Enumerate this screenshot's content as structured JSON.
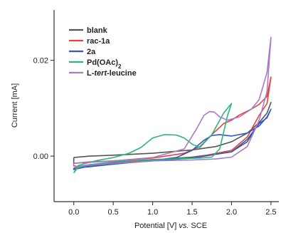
{
  "chart_data": {
    "type": "line",
    "title": "",
    "ylabel": "Current [mA]",
    "xlabel_parts": [
      {
        "text": "Potential [V] ",
        "style": "normal"
      },
      {
        "text": "vs.",
        "style": "italic"
      },
      {
        "text": " SCE",
        "style": "normal"
      }
    ],
    "xlim": [
      -0.25,
      2.6
    ],
    "ylim": [
      -0.0095,
      0.0305
    ],
    "x_ticks": [
      0.0,
      0.5,
      1.0,
      1.5,
      2.0,
      2.5
    ],
    "x_tick_labels": [
      "0.0",
      "0.5",
      "1.0",
      "1.5",
      "2.0",
      "2.5"
    ],
    "y_ticks": [
      0.0,
      0.02
    ],
    "y_tick_labels": [
      "0.00",
      "0.02"
    ],
    "grid": false,
    "legend_position": "top-left",
    "series": [
      {
        "name": "blank",
        "legend_parts": [
          {
            "text": "blank",
            "style": "normal"
          }
        ],
        "color": "#555555",
        "x": [
          0.0,
          0.2,
          0.5,
          1.0,
          1.5,
          1.8,
          2.0,
          2.2,
          2.35,
          2.45,
          2.5,
          2.45,
          2.35,
          2.2,
          2.0,
          1.5,
          1.0,
          0.5,
          0.2,
          0.05,
          0.0,
          0.0
        ],
        "y": [
          -0.0003,
          0.0,
          0.0002,
          0.0006,
          0.0013,
          0.002,
          0.003,
          0.0048,
          0.007,
          0.009,
          0.0112,
          0.009,
          0.007,
          0.003,
          0.0009,
          -0.0002,
          -0.0008,
          -0.0013,
          -0.0018,
          -0.0022,
          -0.002,
          -0.0003
        ]
      },
      {
        "name": "rac-1a",
        "legend_parts": [
          {
            "text": "rac-1a",
            "style": "normal"
          }
        ],
        "color": "#e8413e",
        "x": [
          0.0,
          0.2,
          0.5,
          1.0,
          1.4,
          1.6,
          1.75,
          1.9,
          2.0,
          2.1,
          2.25,
          2.35,
          2.45,
          2.5,
          2.45,
          2.35,
          2.2,
          2.0,
          1.5,
          1.0,
          0.5,
          0.2,
          0.05,
          0.0,
          0.0
        ],
        "y": [
          -0.0015,
          -0.0012,
          -0.001,
          -0.0004,
          0.0006,
          0.002,
          0.0045,
          0.0068,
          0.0075,
          0.0086,
          0.0098,
          0.0108,
          0.0125,
          0.0165,
          0.011,
          0.0085,
          0.004,
          0.0012,
          -0.0004,
          -0.0009,
          -0.0015,
          -0.002,
          -0.0024,
          -0.002,
          -0.0015
        ]
      },
      {
        "name": "2a",
        "legend_parts": [
          {
            "text": "2a",
            "style": "normal"
          }
        ],
        "color": "#3455c4",
        "x": [
          0.0,
          0.2,
          0.5,
          1.0,
          1.3,
          1.5,
          1.65,
          1.75,
          1.85,
          2.0,
          2.2,
          2.35,
          2.45,
          2.5,
          2.45,
          2.35,
          2.2,
          2.0,
          1.5,
          1.0,
          0.5,
          0.2,
          0.05,
          0.0,
          0.0
        ],
        "y": [
          -0.0025,
          -0.0022,
          -0.0017,
          -0.0009,
          -0.0003,
          0.0012,
          0.0033,
          0.0043,
          0.0045,
          0.0042,
          0.0048,
          0.0063,
          0.0082,
          0.0098,
          0.008,
          0.0068,
          0.0035,
          0.0009,
          -0.0004,
          -0.001,
          -0.0016,
          -0.0021,
          -0.0026,
          -0.0028,
          -0.0025
        ]
      },
      {
        "name": "Pd(OAc)2",
        "legend_parts": [
          {
            "text": "Pd(OAc)",
            "style": "normal"
          },
          {
            "text": "2",
            "style": "sub"
          }
        ],
        "color": "#2db47a",
        "x": [
          0.0,
          0.05,
          0.15,
          0.3,
          0.5,
          0.7,
          0.85,
          1.0,
          1.15,
          1.3,
          1.4,
          1.5,
          1.6,
          1.75,
          1.9,
          2.0,
          1.95,
          1.85,
          1.75,
          1.6,
          1.4,
          1.0,
          0.5,
          0.2,
          0.05,
          0.0
        ],
        "y": [
          -0.0035,
          -0.002,
          -0.0015,
          -0.0009,
          -0.0003,
          0.0006,
          0.0018,
          0.0038,
          0.0045,
          0.0044,
          0.0038,
          0.0025,
          0.0018,
          0.0045,
          0.009,
          0.011,
          0.0085,
          0.0015,
          -0.0002,
          -0.0004,
          -0.0005,
          -0.0007,
          -0.0012,
          -0.0018,
          -0.0024,
          -0.0035
        ]
      },
      {
        "name": "L-tert-leucine",
        "legend_parts": [
          {
            "text": "L-",
            "style": "normal"
          },
          {
            "text": "tert",
            "style": "italic"
          },
          {
            "text": "-leucine",
            "style": "normal"
          }
        ],
        "color": "#a77ac8",
        "x": [
          0.0,
          0.2,
          0.5,
          1.0,
          1.4,
          1.55,
          1.65,
          1.72,
          1.78,
          1.85,
          1.95,
          2.1,
          2.25,
          2.35,
          2.45,
          2.5,
          2.45,
          2.35,
          2.2,
          2.0,
          1.8,
          1.5,
          1.0,
          0.5,
          0.2,
          0.05,
          0.0,
          0.0
        ],
        "y": [
          -0.0015,
          -0.0013,
          -0.001,
          -0.0003,
          0.0015,
          0.0055,
          0.0085,
          0.0093,
          0.0092,
          0.0082,
          0.0075,
          0.0082,
          0.0098,
          0.0118,
          0.0175,
          0.0248,
          0.0135,
          0.0075,
          0.002,
          -0.0002,
          -0.0006,
          -0.0008,
          -0.001,
          -0.0015,
          -0.0019,
          -0.0022,
          -0.0021,
          -0.0015
        ]
      }
    ]
  }
}
